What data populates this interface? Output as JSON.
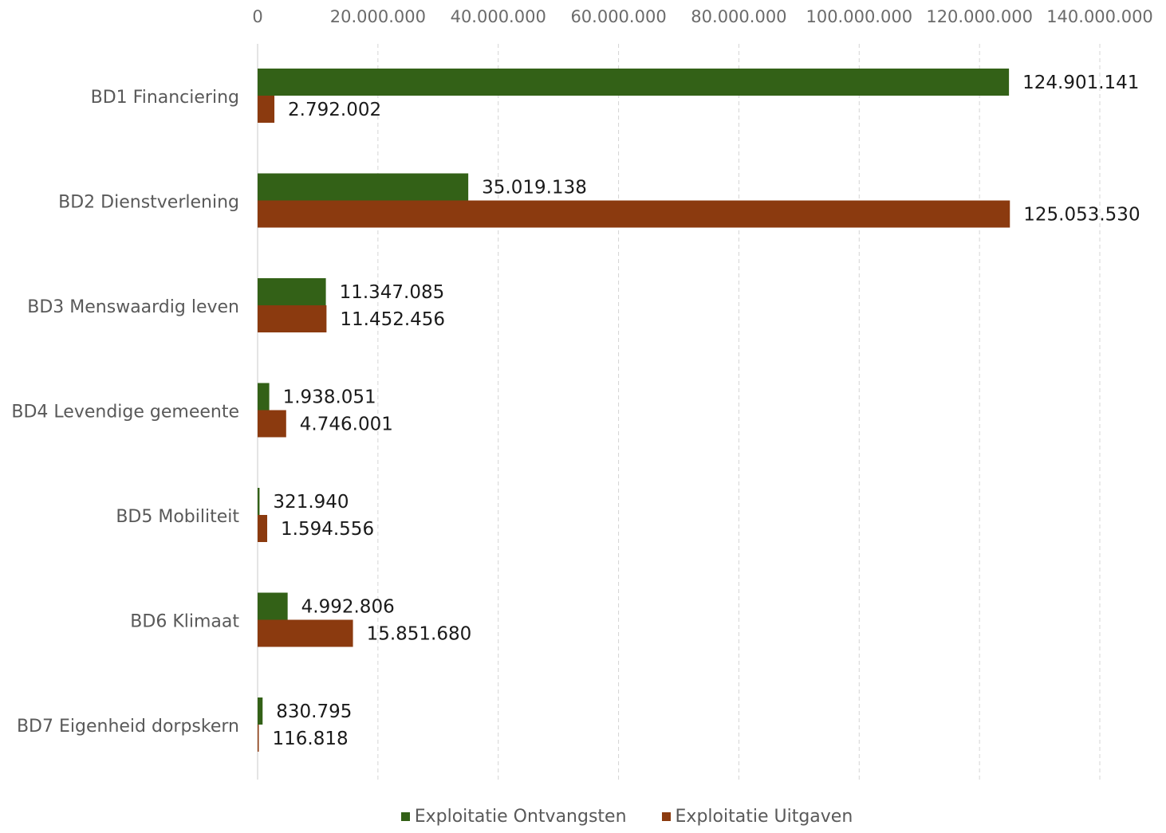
{
  "chart_data": {
    "type": "bar",
    "orientation": "horizontal",
    "categories": [
      "BD1 Financiering",
      "BD2 Dienstverlening",
      "BD3 Menswaardig leven",
      "BD4 Levendige gemeente",
      "BD5 Mobiliteit",
      "BD6 Klimaat",
      "BD7 Eigenheid dorpskern"
    ],
    "series": [
      {
        "name": "Exploitatie Ontvangsten",
        "color": "#336117",
        "values": [
          124901141,
          35019138,
          11347085,
          1938051,
          321940,
          4992806,
          830795
        ],
        "labels": [
          "124.901.141",
          "35.019.138",
          "11.347.085",
          "1.938.051",
          "321.940",
          "4.992.806",
          "830.795"
        ]
      },
      {
        "name": "Exploitatie Uitgaven",
        "color": "#8b3a0f",
        "values": [
          2792002,
          125053530,
          11452456,
          4746001,
          1594556,
          15851680,
          116818
        ],
        "labels": [
          "2.792.002",
          "125.053.530",
          "11.452.456",
          "4.746.001",
          "1.594.556",
          "15.851.680",
          "116.818"
        ]
      }
    ],
    "xlim": [
      0,
      140000000
    ],
    "x_ticks": [
      0,
      20000000,
      40000000,
      60000000,
      80000000,
      100000000,
      120000000,
      140000000
    ],
    "x_tick_labels": [
      "0",
      "20.000.000",
      "40.000.000",
      "60.000.000",
      "80.000.000",
      "100.000.000",
      "120.000.000",
      "140.000.000"
    ],
    "x_axis_position": "top",
    "grid": "vertical dashed",
    "legend_position": "bottom",
    "title": "",
    "xlabel": "",
    "ylabel": ""
  }
}
